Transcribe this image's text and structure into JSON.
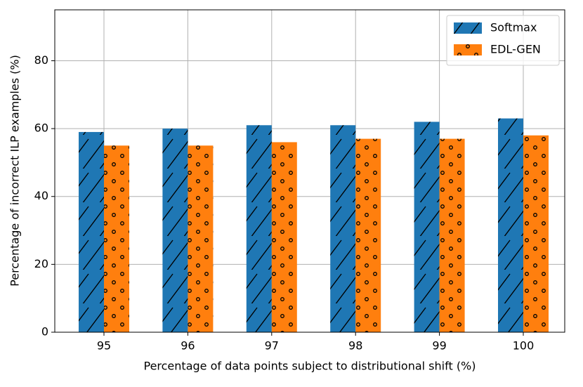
{
  "chart_data": {
    "type": "bar",
    "xlabel": "Percentage of data points subject to distributional shift (%)",
    "ylabel": "Percentage of incorrect ILP examples (%)",
    "categories": [
      "95",
      "96",
      "97",
      "98",
      "99",
      "100"
    ],
    "series": [
      {
        "name": "Softmax",
        "color": "#1f77b4",
        "hatch": "/",
        "values": [
          59,
          60,
          61,
          61,
          62,
          63
        ]
      },
      {
        "name": "EDL-GEN",
        "color": "#ff7f0e",
        "hatch": "o",
        "values": [
          55,
          55,
          56,
          57,
          57,
          58
        ]
      }
    ],
    "ylim": [
      0,
      95
    ],
    "yticks": [
      0,
      20,
      40,
      60,
      80
    ],
    "grid": true,
    "legend": "upper right"
  }
}
